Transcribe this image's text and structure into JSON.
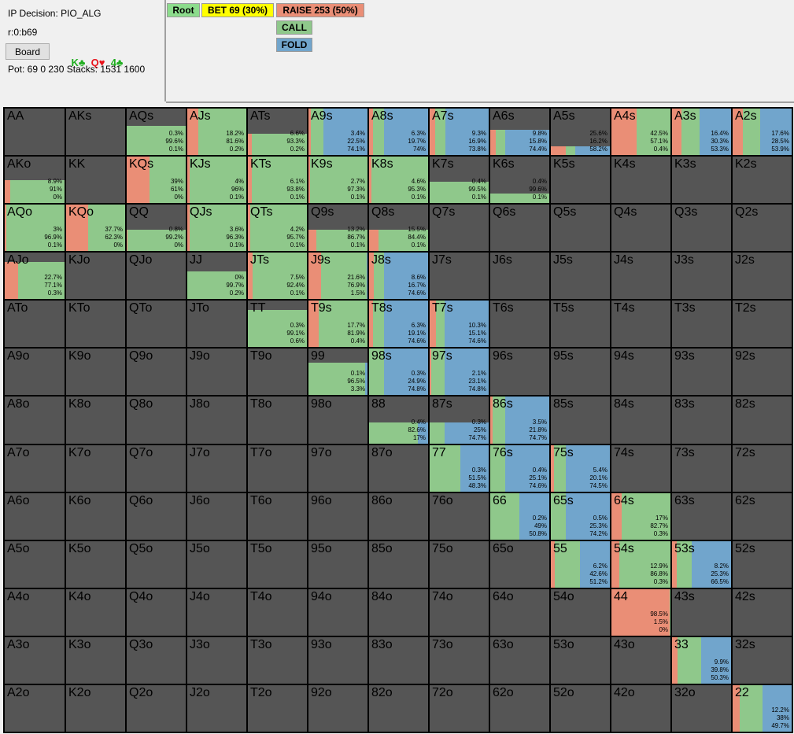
{
  "info": {
    "decision": "IP Decision:  PIO_ALG",
    "line": "r:0:b69",
    "board_button": "Board",
    "board_cards": [
      {
        "text": "K♣",
        "color": "green"
      },
      {
        "text": "Q♥",
        "color": "red"
      },
      {
        "text": "4♣",
        "color": "green"
      }
    ],
    "pot": "Pot: 69 0 230 Stacks: 1531 1600"
  },
  "tree": {
    "root": "Root",
    "bet": "BET 69 (30%)",
    "raise": "RAISE 253 (50%)",
    "call": "CALL",
    "fold": "FOLD"
  },
  "colors": {
    "raise": "#ea8e76",
    "call": "#8fc88b",
    "fold": "#71a5cc",
    "empty": "#555555",
    "root_btn": "#8cdc8c",
    "bet_btn": "#ffff00"
  },
  "grid": {
    "rows": [
      [
        "AA",
        "AKs",
        "AQs",
        "AJs",
        "ATs",
        "A9s",
        "A8s",
        "A7s",
        "A6s",
        "A5s",
        "A4s",
        "A3s",
        "A2s"
      ],
      [
        "AKo",
        "KK",
        "KQs",
        "KJs",
        "KTs",
        "K9s",
        "K8s",
        "K7s",
        "K6s",
        "K5s",
        "K4s",
        "K3s",
        "K2s"
      ],
      [
        "AQo",
        "KQo",
        "QQ",
        "QJs",
        "QTs",
        "Q9s",
        "Q8s",
        "Q7s",
        "Q6s",
        "Q5s",
        "Q4s",
        "Q3s",
        "Q2s"
      ],
      [
        "AJo",
        "KJo",
        "QJo",
        "JJ",
        "JTs",
        "J9s",
        "J8s",
        "J7s",
        "J6s",
        "J5s",
        "J4s",
        "J3s",
        "J2s"
      ],
      [
        "ATo",
        "KTo",
        "QTo",
        "JTo",
        "TT",
        "T9s",
        "T8s",
        "T7s",
        "T6s",
        "T5s",
        "T4s",
        "T3s",
        "T2s"
      ],
      [
        "A9o",
        "K9o",
        "Q9o",
        "J9o",
        "T9o",
        "99",
        "98s",
        "97s",
        "96s",
        "95s",
        "94s",
        "93s",
        "92s"
      ],
      [
        "A8o",
        "K8o",
        "Q8o",
        "J8o",
        "T8o",
        "98o",
        "88",
        "87s",
        "86s",
        "85s",
        "84s",
        "83s",
        "82s"
      ],
      [
        "A7o",
        "K7o",
        "Q7o",
        "J7o",
        "T7o",
        "97o",
        "87o",
        "77",
        "76s",
        "75s",
        "74s",
        "73s",
        "72s"
      ],
      [
        "A6o",
        "K6o",
        "Q6o",
        "J6o",
        "T6o",
        "96o",
        "86o",
        "76o",
        "66",
        "65s",
        "64s",
        "63s",
        "62s"
      ],
      [
        "A5o",
        "K5o",
        "Q5o",
        "J5o",
        "T5o",
        "95o",
        "85o",
        "75o",
        "65o",
        "55",
        "54s",
        "53s",
        "52s"
      ],
      [
        "A4o",
        "K4o",
        "Q4o",
        "J4o",
        "T4o",
        "94o",
        "84o",
        "74o",
        "64o",
        "54o",
        "44",
        "43s",
        "42s"
      ],
      [
        "A3o",
        "K3o",
        "Q3o",
        "J3o",
        "T3o",
        "93o",
        "83o",
        "73o",
        "63o",
        "53o",
        "43o",
        "33",
        "32s"
      ],
      [
        "A2o",
        "K2o",
        "Q2o",
        "J2o",
        "T2o",
        "92o",
        "82o",
        "72o",
        "62o",
        "52o",
        "42o",
        "32o",
        "22"
      ]
    ],
    "freqs": {
      "AQs": {
        "raise": "0.3%",
        "call": "99.6%",
        "fold": "0.1%",
        "r": 0.003,
        "c": 0.996,
        "f": 0.001,
        "h": 0.62
      },
      "AJs": {
        "raise": "18.2%",
        "call": "81.6%",
        "fold": "0.2%",
        "r": 0.182,
        "c": 0.816,
        "f": 0.002,
        "h": 1.0
      },
      "ATs": {
        "raise": "6.6%",
        "call": "93.3%",
        "fold": "0.2%",
        "r": 0.066,
        "c": 0.933,
        "f": 0.002,
        "h": 0.45
      },
      "A9s": {
        "raise": "3.4%",
        "call": "22.5%",
        "fold": "74.1%",
        "r": 0.034,
        "c": 0.225,
        "f": 0.741,
        "h": 1.0
      },
      "A8s": {
        "raise": "6.3%",
        "call": "19.7%",
        "fold": "74%",
        "r": 0.063,
        "c": 0.197,
        "f": 0.74,
        "h": 1.0
      },
      "A7s": {
        "raise": "9.3%",
        "call": "16.9%",
        "fold": "73.8%",
        "r": 0.093,
        "c": 0.169,
        "f": 0.738,
        "h": 1.0
      },
      "A6s": {
        "raise": "9.8%",
        "call": "15.8%",
        "fold": "74.4%",
        "r": 0.098,
        "c": 0.158,
        "f": 0.744,
        "h": 0.55
      },
      "A5s": {
        "raise": "25.6%",
        "call": "16.2%",
        "fold": "58.2%",
        "r": 0.256,
        "c": 0.162,
        "f": 0.582,
        "h": 0.18
      },
      "A4s": {
        "raise": "42.5%",
        "call": "57.1%",
        "fold": "0.4%",
        "r": 0.425,
        "c": 0.571,
        "f": 0.004,
        "h": 1.0
      },
      "A3s": {
        "raise": "16.4%",
        "call": "30.3%",
        "fold": "53.3%",
        "r": 0.164,
        "c": 0.303,
        "f": 0.533,
        "h": 1.0
      },
      "A2s": {
        "raise": "17.6%",
        "call": "28.5%",
        "fold": "53.9%",
        "r": 0.176,
        "c": 0.285,
        "f": 0.539,
        "h": 1.0
      },
      "AKo": {
        "raise": "8.9%",
        "call": "91%",
        "fold": "0%",
        "r": 0.089,
        "c": 0.91,
        "f": 0,
        "h": 0.5
      },
      "KQs": {
        "raise": "39%",
        "call": "61%",
        "fold": "0%",
        "r": 0.39,
        "c": 0.61,
        "f": 0,
        "h": 1.0
      },
      "KJs": {
        "raise": "4%",
        "call": "96%",
        "fold": "0.1%",
        "r": 0.04,
        "c": 0.96,
        "f": 0.001,
        "h": 1.0
      },
      "KTs": {
        "raise": "6.1%",
        "call": "93.8%",
        "fold": "0.1%",
        "r": 0.061,
        "c": 0.938,
        "f": 0.001,
        "h": 1.0
      },
      "K9s": {
        "raise": "2.7%",
        "call": "97.3%",
        "fold": "0.1%",
        "r": 0.027,
        "c": 0.973,
        "f": 0.001,
        "h": 1.0
      },
      "K8s": {
        "raise": "4.6%",
        "call": "95.3%",
        "fold": "0.1%",
        "r": 0.046,
        "c": 0.953,
        "f": 0.001,
        "h": 1.0
      },
      "K7s": {
        "raise": "0.4%",
        "call": "99.5%",
        "fold": "0.1%",
        "r": 0.004,
        "c": 0.995,
        "f": 0.001,
        "h": 0.45
      },
      "K6s": {
        "raise": "0.4%",
        "call": "99.6%",
        "fold": "0.1%",
        "r": 0.004,
        "c": 0.996,
        "f": 0.001,
        "h": 0.2
      },
      "AQo": {
        "raise": "3%",
        "call": "96.9%",
        "fold": "0.1%",
        "r": 0.03,
        "c": 0.969,
        "f": 0.001,
        "h": 1.0
      },
      "KQo": {
        "raise": "37.7%",
        "call": "62.3%",
        "fold": "0%",
        "r": 0.377,
        "c": 0.623,
        "f": 0,
        "h": 1.0
      },
      "QQ": {
        "raise": "0.8%",
        "call": "99.2%",
        "fold": "0%",
        "r": 0.008,
        "c": 0.992,
        "f": 0,
        "h": 0.45
      },
      "QJs": {
        "raise": "3.6%",
        "call": "96.3%",
        "fold": "0.1%",
        "r": 0.036,
        "c": 0.963,
        "f": 0.001,
        "h": 1.0
      },
      "QTs": {
        "raise": "4.2%",
        "call": "95.7%",
        "fold": "0.1%",
        "r": 0.042,
        "c": 0.957,
        "f": 0.001,
        "h": 1.0
      },
      "Q9s": {
        "raise": "13.2%",
        "call": "86.7%",
        "fold": "0.1%",
        "r": 0.132,
        "c": 0.867,
        "f": 0.001,
        "h": 0.45
      },
      "Q8s": {
        "raise": "15.5%",
        "call": "84.4%",
        "fold": "0.1%",
        "r": 0.155,
        "c": 0.844,
        "f": 0.001,
        "h": 0.45
      },
      "AJo": {
        "raise": "22.7%",
        "call": "77.1%",
        "fold": "0.3%",
        "r": 0.227,
        "c": 0.771,
        "f": 0.003,
        "h": 0.8
      },
      "JJ": {
        "raise": "0%",
        "call": "99.7%",
        "fold": "0.2%",
        "r": 0,
        "c": 0.997,
        "f": 0.002,
        "h": 0.6
      },
      "JTs": {
        "raise": "7.5%",
        "call": "92.4%",
        "fold": "0.1%",
        "r": 0.075,
        "c": 0.924,
        "f": 0.001,
        "h": 1.0
      },
      "J9s": {
        "raise": "21.6%",
        "call": "76.9%",
        "fold": "1.5%",
        "r": 0.216,
        "c": 0.769,
        "f": 0.015,
        "h": 1.0
      },
      "J8s": {
        "raise": "8.6%",
        "call": "16.7%",
        "fold": "74.6%",
        "r": 0.086,
        "c": 0.167,
        "f": 0.746,
        "h": 1.0
      },
      "TT": {
        "raise": "0.3%",
        "call": "99.1%",
        "fold": "0.6%",
        "r": 0.003,
        "c": 0.991,
        "f": 0.006,
        "h": 0.8
      },
      "T9s": {
        "raise": "17.7%",
        "call": "81.9%",
        "fold": "0.4%",
        "r": 0.177,
        "c": 0.819,
        "f": 0.004,
        "h": 1.0
      },
      "T8s": {
        "raise": "6.3%",
        "call": "19.1%",
        "fold": "74.6%",
        "r": 0.063,
        "c": 0.191,
        "f": 0.746,
        "h": 1.0
      },
      "T7s": {
        "raise": "10.3%",
        "call": "15.1%",
        "fold": "74.6%",
        "r": 0.103,
        "c": 0.151,
        "f": 0.746,
        "h": 1.0
      },
      "99": {
        "raise": "0.1%",
        "call": "96.5%",
        "fold": "3.3%",
        "r": 0.001,
        "c": 0.965,
        "f": 0.033,
        "h": 0.7
      },
      "98s": {
        "raise": "0.3%",
        "call": "24.9%",
        "fold": "74.8%",
        "r": 0.003,
        "c": 0.249,
        "f": 0.748,
        "h": 1.0
      },
      "97s": {
        "raise": "2.1%",
        "call": "23.1%",
        "fold": "74.8%",
        "r": 0.021,
        "c": 0.231,
        "f": 0.748,
        "h": 1.0
      },
      "88": {
        "raise": "0.4%",
        "call": "82.6%",
        "fold": "17%",
        "r": 0.004,
        "c": 0.826,
        "f": 0.17,
        "h": 0.45
      },
      "87s": {
        "raise": "0.3%",
        "call": "25%",
        "fold": "74.7%",
        "r": 0.003,
        "c": 0.25,
        "f": 0.747,
        "h": 0.45
      },
      "86s": {
        "raise": "3.5%",
        "call": "21.8%",
        "fold": "74.7%",
        "r": 0.035,
        "c": 0.218,
        "f": 0.747,
        "h": 1.0
      },
      "77": {
        "raise": "0.3%",
        "call": "51.5%",
        "fold": "48.3%",
        "r": 0.003,
        "c": 0.515,
        "f": 0.483,
        "h": 1.0
      },
      "76s": {
        "raise": "0.4%",
        "call": "25.1%",
        "fold": "74.6%",
        "r": 0.004,
        "c": 0.251,
        "f": 0.746,
        "h": 1.0
      },
      "75s": {
        "raise": "5.4%",
        "call": "20.1%",
        "fold": "74.5%",
        "r": 0.054,
        "c": 0.201,
        "f": 0.745,
        "h": 1.0
      },
      "66": {
        "raise": "0.2%",
        "call": "49%",
        "fold": "50.8%",
        "r": 0.002,
        "c": 0.49,
        "f": 0.508,
        "h": 1.0
      },
      "65s": {
        "raise": "0.5%",
        "call": "25.3%",
        "fold": "74.2%",
        "r": 0.005,
        "c": 0.253,
        "f": 0.742,
        "h": 1.0
      },
      "64s": {
        "raise": "17%",
        "call": "82.7%",
        "fold": "0.3%",
        "r": 0.17,
        "c": 0.827,
        "f": 0.003,
        "h": 1.0
      },
      "55": {
        "raise": "6.2%",
        "call": "42.6%",
        "fold": "51.2%",
        "r": 0.062,
        "c": 0.426,
        "f": 0.512,
        "h": 1.0
      },
      "54s": {
        "raise": "12.9%",
        "call": "86.8%",
        "fold": "0.3%",
        "r": 0.129,
        "c": 0.868,
        "f": 0.003,
        "h": 1.0
      },
      "53s": {
        "raise": "8.2%",
        "call": "25.3%",
        "fold": "66.5%",
        "r": 0.082,
        "c": 0.253,
        "f": 0.665,
        "h": 1.0
      },
      "44": {
        "raise": "98.5%",
        "call": "1.5%",
        "fold": "0%",
        "r": 0.985,
        "c": 0.015,
        "f": 0,
        "h": 1.0
      },
      "33": {
        "raise": "9.9%",
        "call": "39.8%",
        "fold": "50.3%",
        "r": 0.099,
        "c": 0.398,
        "f": 0.503,
        "h": 1.0
      },
      "22": {
        "raise": "12.2%",
        "call": "38%",
        "fold": "49.7%",
        "r": 0.122,
        "c": 0.38,
        "f": 0.497,
        "h": 1.0
      }
    }
  }
}
